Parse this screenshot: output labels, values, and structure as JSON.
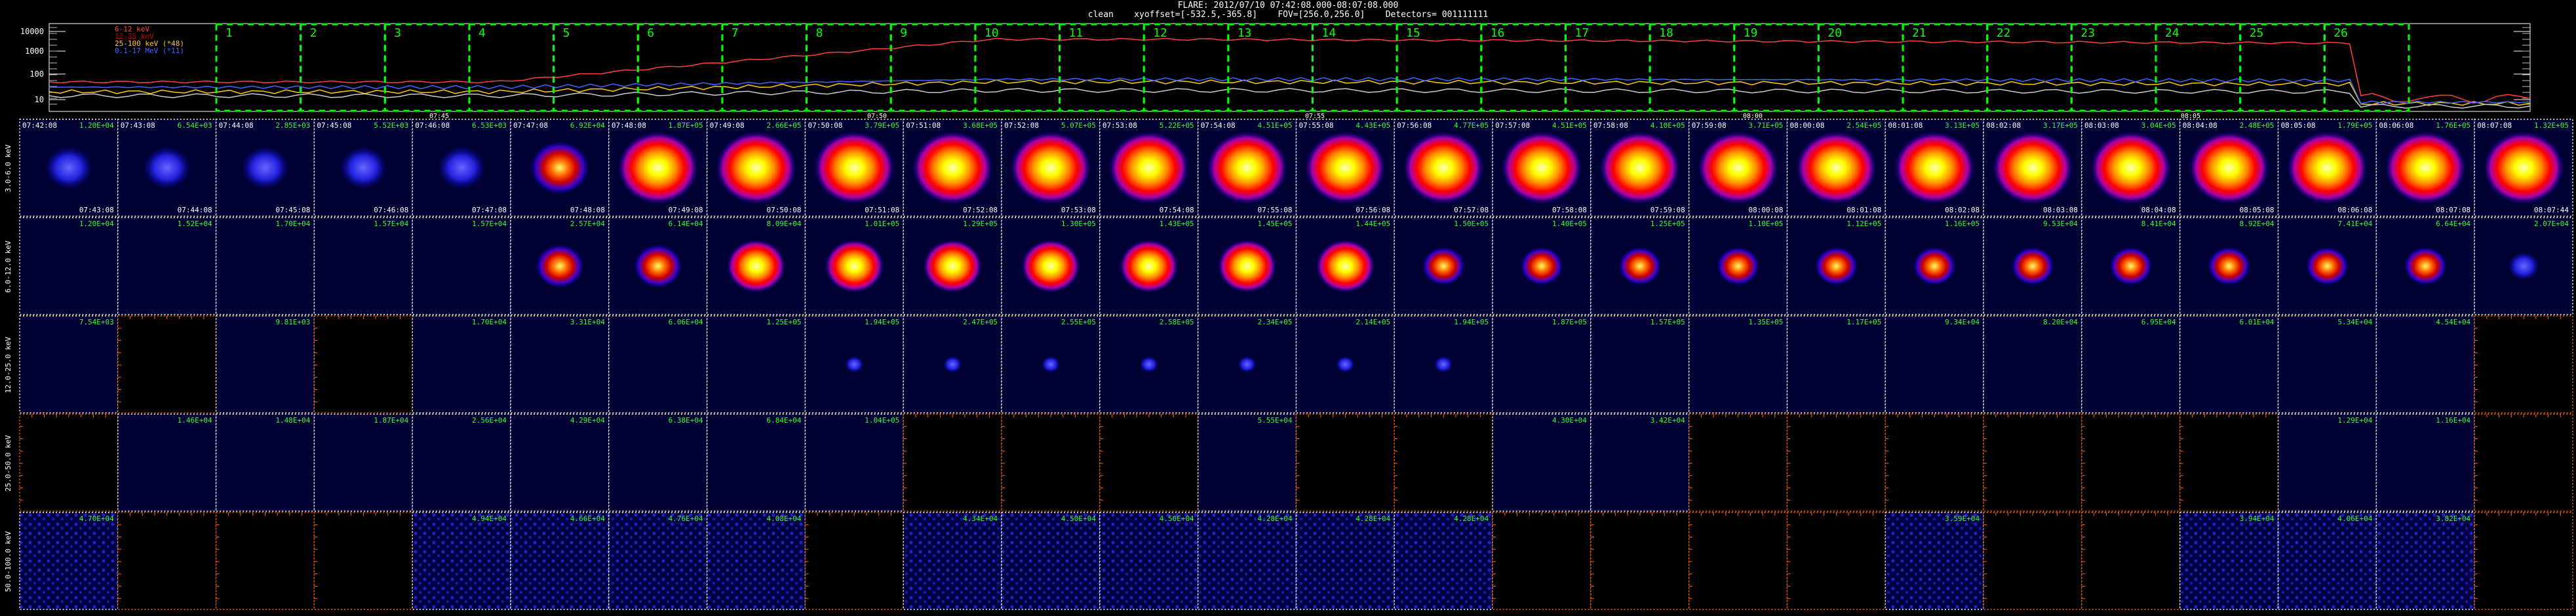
{
  "header": {
    "title": "FLARE: 2012/07/10 07:42:08.000-08:07:08.000",
    "subtitle": "clean    xyoffset=[-532.5,-365.8]    FOV=[256.0,256.0]    Detectors= 001111111"
  },
  "colors": {
    "accent_green": "#00ff00",
    "count_text": "#33ff33",
    "panel_bg_blue": "#000033",
    "empty_frame": "#ff6600",
    "grid_border": "#ffffff"
  },
  "lightcurve": {
    "y_ticks": [
      "10000",
      "1000",
      "100",
      "10"
    ],
    "legend": [
      "6-12 keV",
      "12-25 keV",
      "25-100 keV (*48)",
      "0.1-17 MeV (*11)"
    ],
    "legend_colors": [
      "#ff4040",
      "#cc0000",
      "#ffcc00",
      "#4466ff"
    ],
    "time_ticks": [
      "07:45",
      "07:50",
      "07:55",
      "08:00",
      "08:05"
    ],
    "interval_numbers": [
      "1",
      "2",
      "3",
      "4",
      "5",
      "6",
      "7",
      "8",
      "9",
      "10",
      "11",
      "12",
      "13",
      "14",
      "15",
      "16",
      "17",
      "18",
      "19",
      "20",
      "21",
      "22",
      "23",
      "24",
      "25",
      "26"
    ]
  },
  "columns": {
    "start_times": [
      "07:42:08",
      "07:43:08",
      "07:44:08",
      "07:45:08",
      "07:46:08",
      "07:47:08",
      "07:48:08",
      "07:49:08",
      "07:50:08",
      "07:51:08",
      "07:52:08",
      "07:53:08",
      "07:54:08",
      "07:55:08",
      "07:56:08",
      "07:57:08",
      "07:58:08",
      "07:59:08",
      "08:00:08",
      "08:01:08",
      "08:02:08",
      "08:03:08",
      "08:04:08",
      "08:05:08",
      "08:06:08",
      "08:07:08"
    ],
    "end_times": [
      "07:43:08",
      "07:44:08",
      "07:45:08",
      "07:46:08",
      "07:47:08",
      "07:48:08",
      "07:49:08",
      "07:50:08",
      "07:51:08",
      "07:52:08",
      "07:53:08",
      "07:54:08",
      "07:55:08",
      "07:56:08",
      "07:57:08",
      "07:58:08",
      "07:59:08",
      "08:00:08",
      "08:01:08",
      "08:02:08",
      "08:03:08",
      "08:04:08",
      "08:05:08",
      "08:06:08",
      "08:07:08",
      "08:07:44"
    ]
  },
  "rows": [
    {
      "label": "3.0-6.0 keV",
      "counts": [
        "1.20E+04",
        "6.54E+03",
        "2.85E+03",
        "5.52E+03",
        "6.53E+03",
        "6.92E+04",
        "1.87E+05",
        "2.66E+05",
        "3.79E+05",
        "3.68E+05",
        "5.07E+05",
        "5.22E+05",
        "4.51E+05",
        "4.43E+05",
        "4.77E+05",
        "4.51E+05",
        "4.10E+05",
        "3.71E+05",
        "2.54E+05",
        "3.13E+05",
        "3.17E+05",
        "3.04E+05",
        "2.48E+05",
        "1.79E+05",
        "1.76E+05",
        "1.32E+05"
      ]
    },
    {
      "label": "6.0-12.0 keV",
      "counts": [
        "1.20E+04",
        "1.52E+04",
        "1.70E+04",
        "1.57E+04",
        "1.57E+04",
        "2.57E+04",
        "6.14E+04",
        "8.09E+04",
        "1.01E+05",
        "1.29E+05",
        "1.30E+05",
        "1.43E+05",
        "1.45E+05",
        "1.44E+05",
        "1.50E+05",
        "1.40E+05",
        "1.25E+05",
        "1.10E+05",
        "1.12E+05",
        "1.16E+05",
        "9.53E+04",
        "8.41E+04",
        "8.92E+04",
        "7.41E+04",
        "6.64E+04",
        "2.07E+04"
      ]
    },
    {
      "label": "12.0-25.0 keV",
      "counts": [
        "7.54E+03",
        "",
        "9.81E+03",
        "",
        "1.70E+04",
        "3.31E+04",
        "6.06E+04",
        "1.25E+05",
        "1.94E+05",
        "2.47E+05",
        "2.55E+05",
        "2.58E+05",
        "2.34E+05",
        "2.14E+05",
        "1.94E+05",
        "1.87E+05",
        "1.57E+05",
        "1.35E+05",
        "1.17E+05",
        "9.34E+04",
        "8.20E+04",
        "6.95E+04",
        "6.01E+04",
        "5.34E+04",
        "4.54E+04",
        ""
      ]
    },
    {
      "label": "25.0-50.0 keV",
      "counts": [
        "",
        "1.46E+04",
        "1.48E+04",
        "1.87E+04",
        "2.56E+04",
        "4.29E+04",
        "6.38E+04",
        "6.84E+04",
        "1.04E+05",
        "",
        "",
        "",
        "5.55E+04",
        "",
        "",
        "4.30E+04",
        "3.42E+04",
        "",
        "",
        "",
        "",
        "",
        "",
        "1.29E+04",
        "1.16E+04",
        ""
      ]
    },
    {
      "label": "50.0-100.0 keV",
      "counts": [
        "4.70E+04",
        "",
        "",
        "",
        "4.94E+04",
        "4.66E+04",
        "4.76E+04",
        "4.08E+04",
        "",
        "4.34E+04",
        "4.50E+04",
        "4.50E+04",
        "4.28E+04",
        "4.28E+04",
        "4.28E+04",
        "",
        "",
        "",
        "",
        "3.59E+04",
        "",
        "",
        "3.94E+04",
        "4.06E+04",
        "3.82E+04",
        ""
      ]
    }
  ]
}
